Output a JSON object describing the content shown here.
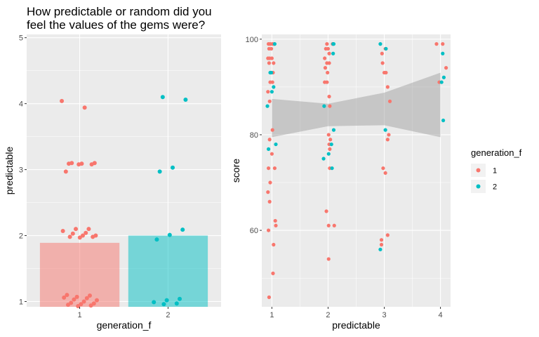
{
  "chart_data": [
    {
      "type": "bar",
      "title": "How predictable or random did you feel the values of the gems were?",
      "title_lines": [
        "How predictable or random did you",
        "feel the values of the gems were?"
      ],
      "xlabel": "generation_f",
      "ylabel": "predictable",
      "categories": [
        "1",
        "2"
      ],
      "bar_means": [
        1.89,
        2.0
      ],
      "ylim": [
        0.92,
        5.05
      ],
      "y_ticks": [
        1,
        2,
        3,
        4,
        5
      ],
      "grid": true,
      "jitter_points": {
        "1": [
          4.04,
          3.94,
          3.1,
          3.1,
          3.09,
          3.09,
          3.08,
          3.08,
          2.97,
          2.1,
          2.1,
          2.07,
          2.04,
          2.03,
          2.0,
          2.0,
          1.98,
          1.98,
          1.97,
          1.1,
          1.09,
          1.07,
          1.06,
          1.05,
          1.03,
          1.02,
          1.0,
          0.98,
          0.97,
          0.96,
          0.95,
          0.94,
          0.93
        ],
        "2": [
          4.1,
          4.06,
          3.03,
          2.97,
          2.09,
          2.01,
          1.94,
          1.04,
          1.02,
          0.99,
          0.97,
          0.96
        ]
      }
    },
    {
      "type": "scatter",
      "xlabel": "predictable",
      "ylabel": "score",
      "xlim": [
        0.82,
        4.18
      ],
      "ylim": [
        44,
        101
      ],
      "x_ticks": [
        1,
        2,
        3,
        4
      ],
      "y_ticks": [
        60,
        80,
        100
      ],
      "grid": true,
      "smooth": {
        "method": "lm",
        "x": [
          1,
          2,
          3,
          4
        ],
        "lower": [
          79.5,
          81.8,
          82.0,
          79.5
        ],
        "upper": [
          87.5,
          86.5,
          88.8,
          93.0
        ]
      },
      "series": [
        {
          "name": "1",
          "points": [
            [
              0.94,
              99
            ],
            [
              0.97,
              99
            ],
            [
              1.01,
              99
            ],
            [
              1.04,
              99
            ],
            [
              0.95,
              98
            ],
            [
              0.99,
              98
            ],
            [
              0.93,
              96
            ],
            [
              0.96,
              96
            ],
            [
              1.0,
              96
            ],
            [
              1.03,
              95
            ],
            [
              0.95,
              95
            ],
            [
              1.02,
              93
            ],
            [
              0.97,
              91
            ],
            [
              1.01,
              91
            ],
            [
              0.93,
              89
            ],
            [
              0.96,
              87
            ],
            [
              1.01,
              81
            ],
            [
              0.96,
              79
            ],
            [
              1.0,
              76
            ],
            [
              0.94,
              73
            ],
            [
              1.05,
              73
            ],
            [
              0.97,
              70
            ],
            [
              0.93,
              68
            ],
            [
              0.96,
              66
            ],
            [
              1.06,
              62
            ],
            [
              1.07,
              61
            ],
            [
              0.94,
              60
            ],
            [
              1.03,
              57
            ],
            [
              1.02,
              51
            ],
            [
              0.95,
              46
            ],
            [
              1.98,
              99
            ],
            [
              2.08,
              99
            ],
            [
              1.96,
              98
            ],
            [
              2.0,
              98
            ],
            [
              2.02,
              97
            ],
            [
              1.94,
              96
            ],
            [
              1.98,
              95
            ],
            [
              2.02,
              95
            ],
            [
              1.95,
              94
            ],
            [
              1.99,
              93
            ],
            [
              1.94,
              91
            ],
            [
              1.98,
              91
            ],
            [
              2.02,
              88
            ],
            [
              2.03,
              86
            ],
            [
              2.01,
              80
            ],
            [
              2.04,
              79
            ],
            [
              2.02,
              78
            ],
            [
              2.03,
              77
            ],
            [
              2.03,
              73
            ],
            [
              1.97,
              64
            ],
            [
              2.01,
              61
            ],
            [
              2.11,
              61
            ],
            [
              2.01,
              54
            ],
            [
              2.96,
              97
            ],
            [
              3.02,
              98
            ],
            [
              2.97,
              95
            ],
            [
              3.0,
              93
            ],
            [
              3.03,
              93
            ],
            [
              3.06,
              90
            ],
            [
              3.1,
              87
            ],
            [
              3.08,
              80
            ],
            [
              3.06,
              79
            ],
            [
              2.98,
              73
            ],
            [
              3.02,
              72
            ],
            [
              3.06,
              59
            ],
            [
              2.95,
              58
            ],
            [
              2.95,
              57
            ],
            [
              3.93,
              99
            ],
            [
              4.04,
              99
            ],
            [
              4.1,
              94
            ],
            [
              3.98,
              91
            ]
          ]
        },
        {
          "name": "2",
          "points": [
            [
              1.05,
              99
            ],
            [
              0.97,
              93
            ],
            [
              0.99,
              93
            ],
            [
              1.03,
              90
            ],
            [
              1.0,
              89
            ],
            [
              0.92,
              86
            ],
            [
              1.07,
              78
            ],
            [
              0.94,
              77
            ],
            [
              2.09,
              99
            ],
            [
              2.1,
              99
            ],
            [
              2.09,
              97
            ],
            [
              1.93,
              86
            ],
            [
              2.1,
              81
            ],
            [
              2.06,
              78
            ],
            [
              2.01,
              76
            ],
            [
              1.92,
              75
            ],
            [
              2.07,
              73
            ],
            [
              2.93,
              99
            ],
            [
              3.03,
              98
            ],
            [
              3.02,
              81
            ],
            [
              2.93,
              56
            ],
            [
              4.04,
              97
            ],
            [
              4.06,
              92
            ],
            [
              4.02,
              91
            ],
            [
              4.05,
              83
            ]
          ]
        }
      ]
    }
  ],
  "legend": {
    "title": "generation_f",
    "entries": [
      {
        "label": "1",
        "color": "#F8766D"
      },
      {
        "label": "2",
        "color": "#00BFC4"
      }
    ]
  },
  "colors": {
    "panel_bg": "#EBEBEB",
    "grid_major": "#FFFFFF",
    "series_1": "#F8766D",
    "series_2": "#00BFC4",
    "ribbon": "#999999",
    "tick_text": "#4D4D4D"
  }
}
